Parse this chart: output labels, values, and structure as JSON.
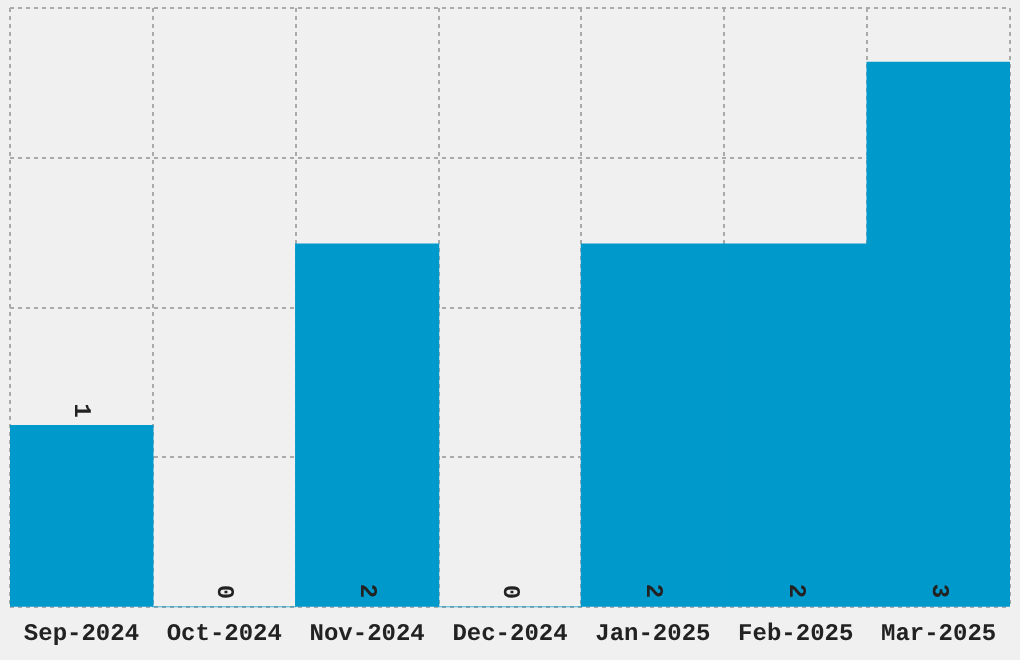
{
  "chart_data": {
    "type": "bar",
    "categories": [
      "Sep-2024",
      "Oct-2024",
      "Nov-2024",
      "Dec-2024",
      "Jan-2025",
      "Feb-2025",
      "Mar-2025"
    ],
    "values": [
      1,
      0,
      2,
      0,
      2,
      2,
      3
    ],
    "color": "#0099cc",
    "ylim": [
      0,
      3.3
    ],
    "yticks": [
      {
        "value": 0,
        "label": null
      },
      {
        "value": 0.825,
        "label": null
      },
      {
        "value": 1.65,
        "label": null
      },
      {
        "value": 2.475,
        "label": null
      },
      {
        "value": 3.3,
        "label": null
      }
    ],
    "tick_labels": "x",
    "grid": true,
    "data_labels": true
  }
}
